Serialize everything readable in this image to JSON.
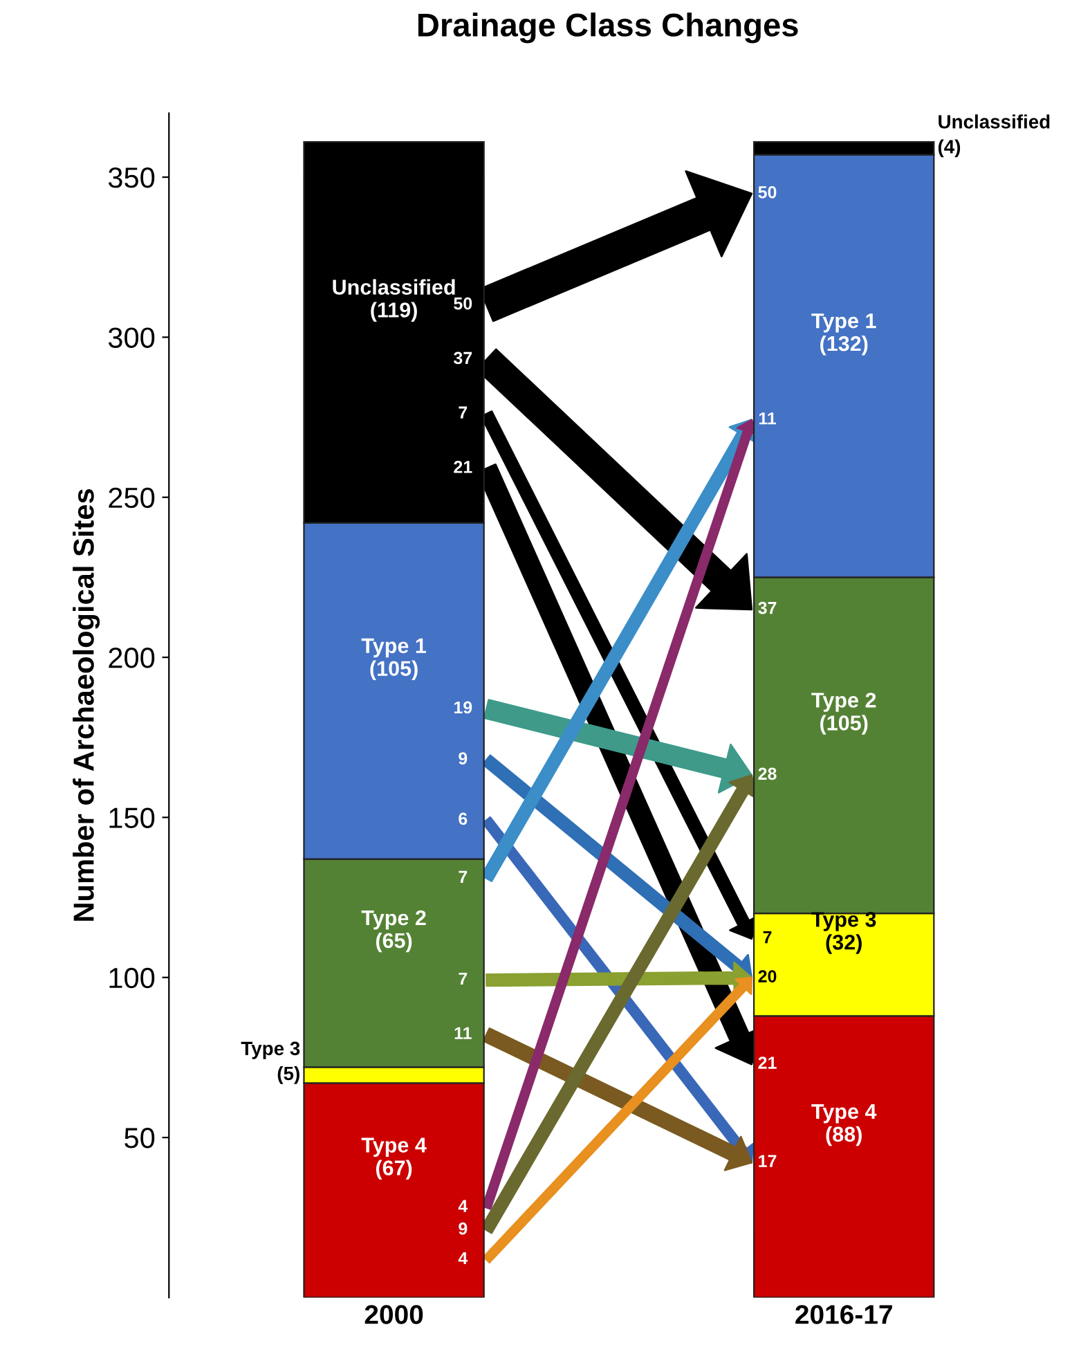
{
  "chart_data": {
    "type": "bar",
    "title": "Drainage Class Changes",
    "ylabel": "Number of Archaeological Sites",
    "categories": [
      "2000",
      "2016-17"
    ],
    "stacked": true,
    "ylim": [
      0,
      370
    ],
    "yticks": [
      50,
      100,
      150,
      200,
      250,
      300,
      350
    ],
    "grid": false,
    "legend": false,
    "series": [
      {
        "name": "Type 4",
        "color": "#cc0000",
        "values": [
          67,
          88
        ],
        "value_labels": [
          "(67)",
          "(88)"
        ]
      },
      {
        "name": "Type 3",
        "color": "#ffff00",
        "values": [
          5,
          32
        ],
        "value_labels": [
          "(5)",
          "(32)"
        ]
      },
      {
        "name": "Type 2",
        "color": "#548235",
        "values": [
          65,
          105
        ],
        "value_labels": [
          "(65)",
          "(105)"
        ]
      },
      {
        "name": "Type 1",
        "color": "#4472c4",
        "values": [
          105,
          132
        ],
        "value_labels": [
          "(105)",
          "(132)"
        ]
      },
      {
        "name": "Unclassified",
        "color": "#000000",
        "values": [
          119,
          4
        ],
        "value_labels": [
          "(119)",
          "(4)"
        ]
      }
    ],
    "annotations": [
      "50",
      "37",
      "7",
      "21",
      "19",
      "9",
      "6",
      "7",
      "7",
      "11",
      "4",
      "9",
      "4",
      "50",
      "11",
      "37",
      "28",
      "7",
      "20",
      "21",
      "17"
    ]
  }
}
